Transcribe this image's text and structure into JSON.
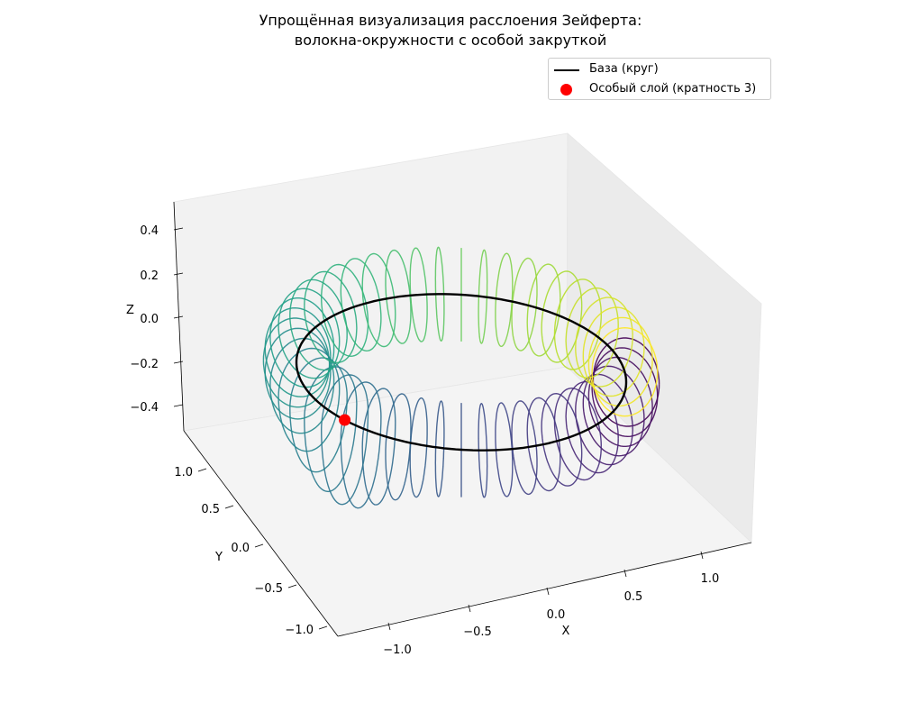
{
  "title_line1": "Упрощённая визуализация расслоения Зейферта:",
  "title_line2": "волокна-окружности с особой закруткой",
  "legend": {
    "base_label": "База (круг)",
    "singular_label": "Особый слой (кратность 3)"
  },
  "chart_data": {
    "type": "3d-line",
    "title": "Упрощённая визуализация расслоения Зейферта: волокна-окружности с особой закруткой",
    "xlabel": "X",
    "ylabel": "Y",
    "zlabel": "Z",
    "xticks": [
      "−1.0",
      "−0.5",
      "0.0",
      "0.5",
      "1.0"
    ],
    "yticks": [
      "−1.0",
      "−0.5",
      "0.0",
      "0.5",
      "1.0"
    ],
    "zticks": [
      "−0.4",
      "−0.2",
      "0.0",
      "0.2",
      "0.4"
    ],
    "xlim": [
      -1.2,
      1.2
    ],
    "ylim": [
      -1.2,
      1.2
    ],
    "zlim": [
      -0.5,
      0.5
    ],
    "base_circle": {
      "name": "База (круг)",
      "radius": 1.0,
      "z": 0.0,
      "color": "#000000"
    },
    "fibers": {
      "count": 48,
      "radius": 0.2,
      "colormap": "viridis",
      "singular_angle_deg": 135,
      "singular_multiplicity": 3
    },
    "singular_point": {
      "name": "Особый слой (кратность 3)",
      "x": -0.707,
      "y": 0.707,
      "z": 0.0,
      "color": "#ff0000"
    },
    "grid": false,
    "legend_position": "upper right"
  }
}
